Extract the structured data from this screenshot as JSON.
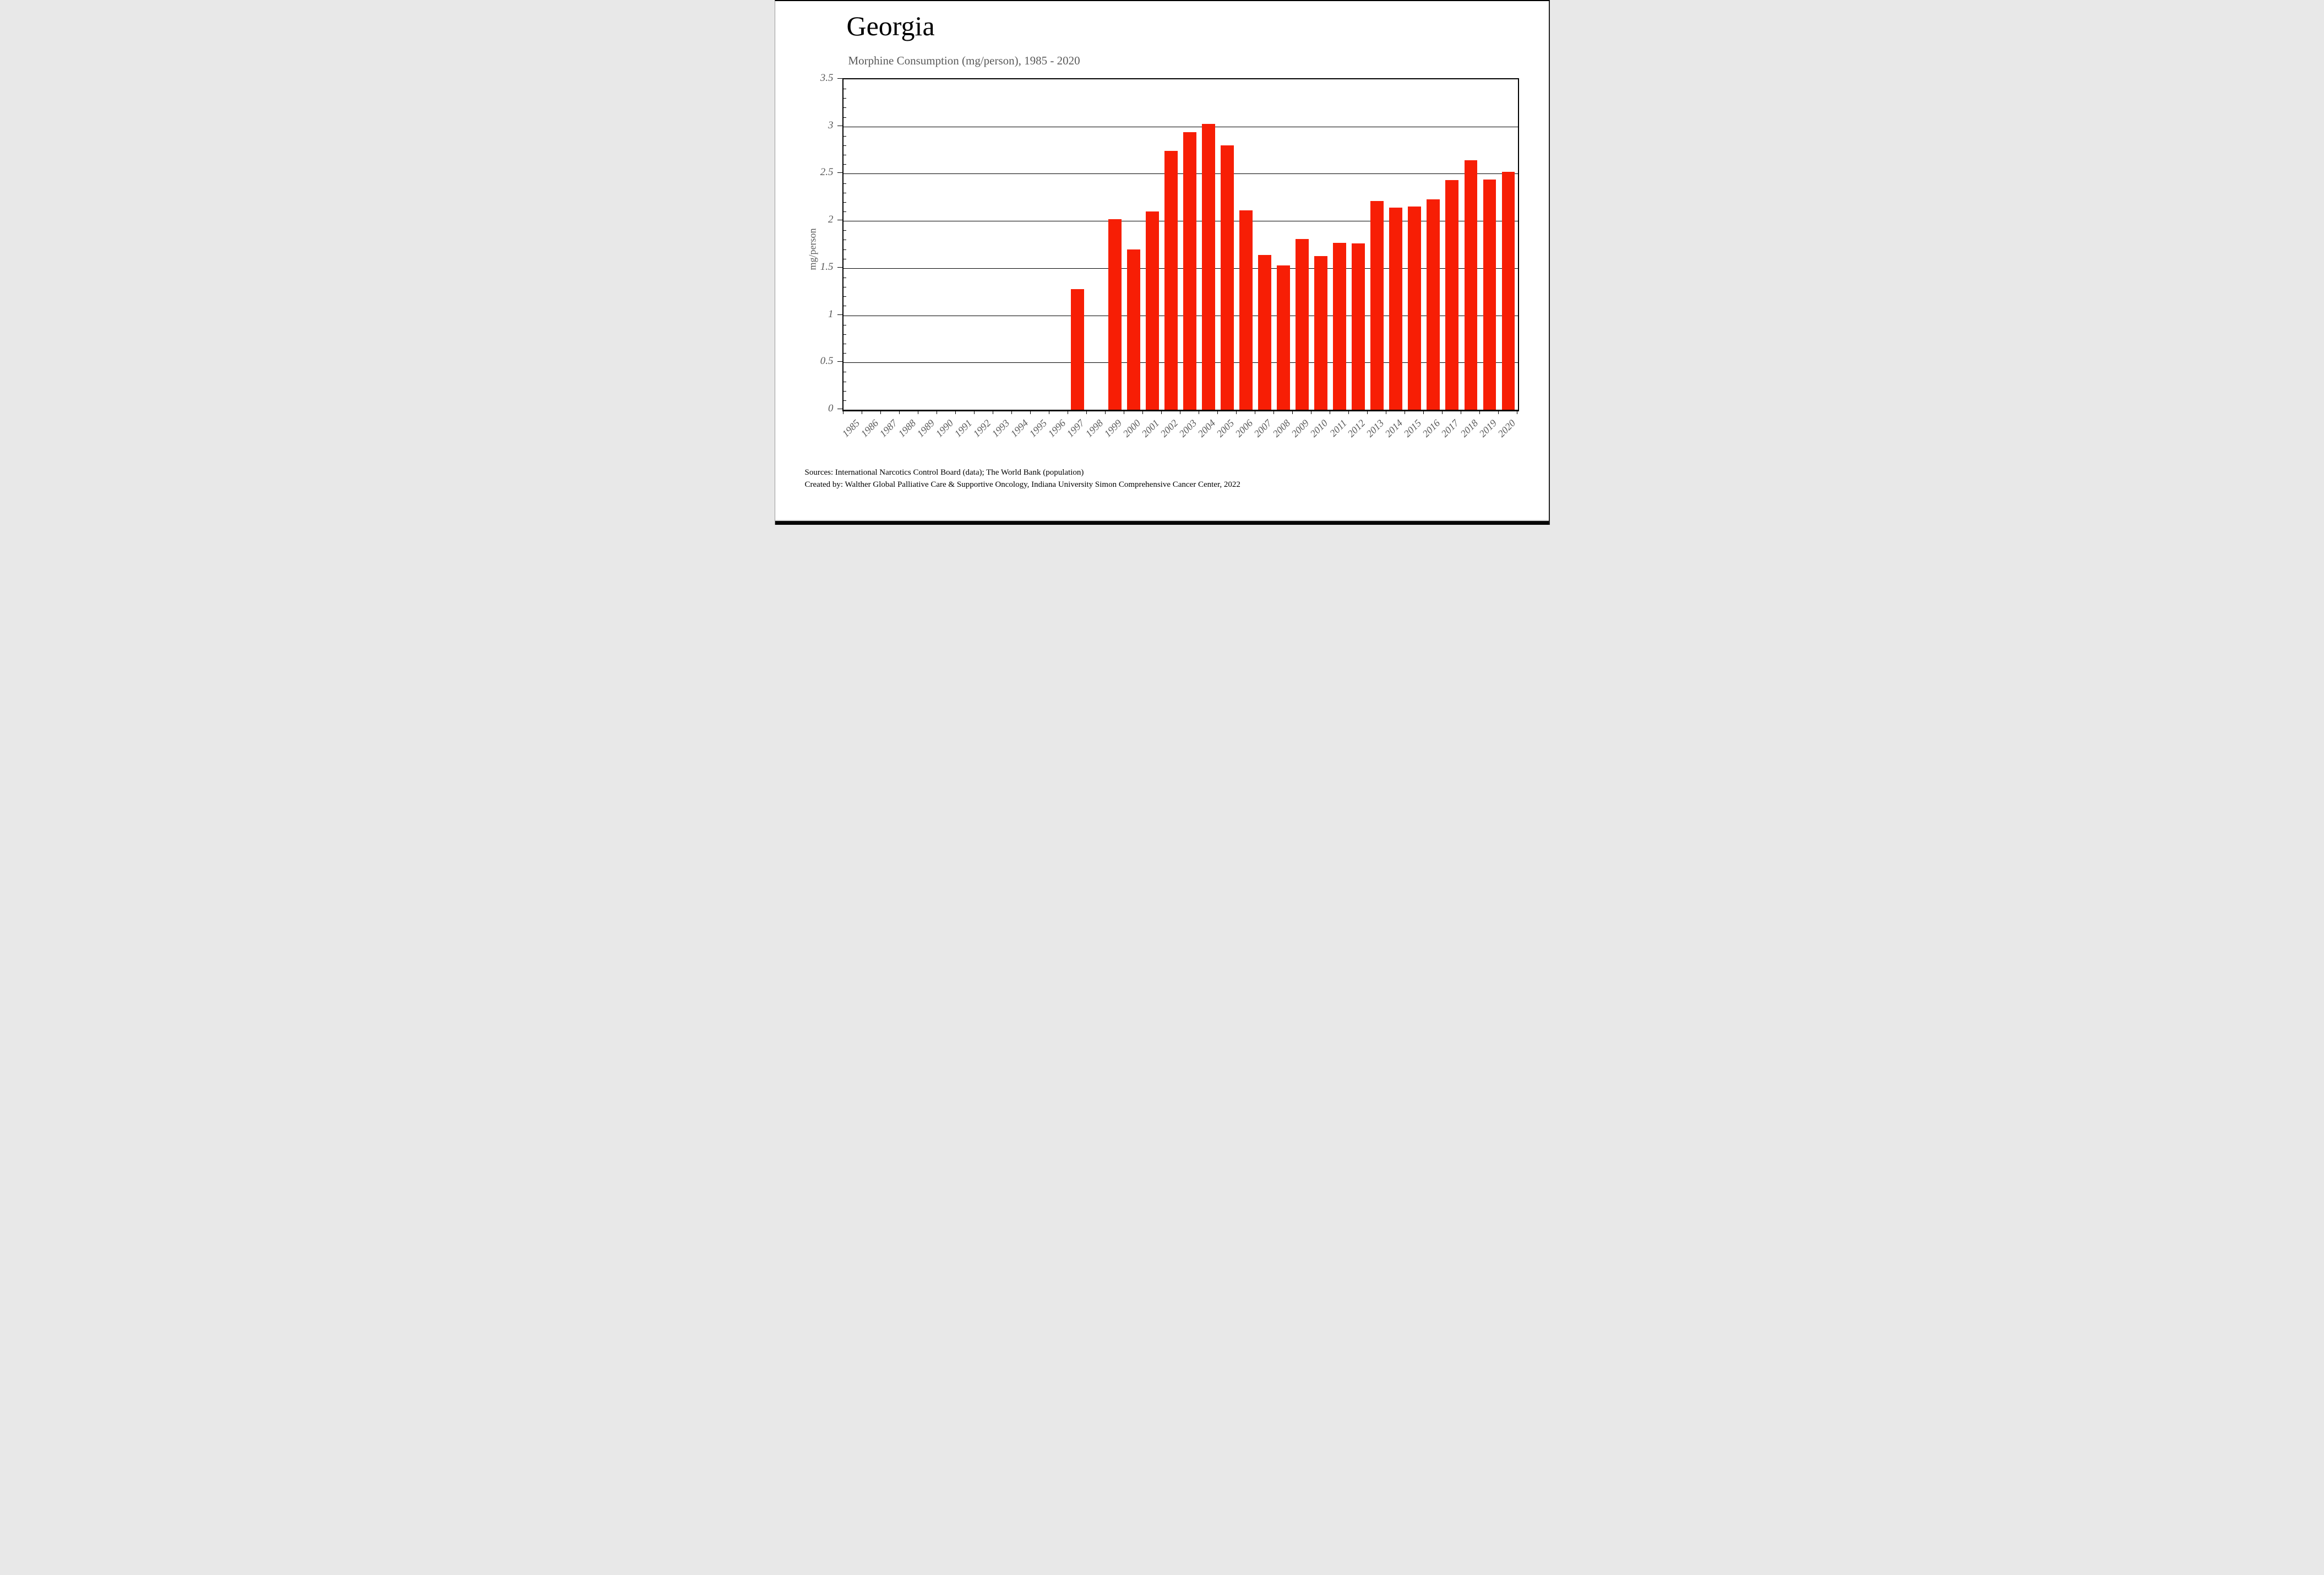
{
  "page": {
    "title": "Georgia",
    "subtitle": "Morphine Consumption (mg/person), 1985 - 2020",
    "source_line1": "Sources: International Narcotics Control Board (data); The World Bank (population)",
    "source_line2": "Created by: Walther  Global Palliative Care & Supportive Oncology, Indiana University Simon Comprehensive Cancer Center, 2022"
  },
  "chart_data": {
    "type": "bar",
    "title": "Georgia",
    "subtitle": "Morphine Consumption (mg/person), 1985 - 2020",
    "xlabel": "",
    "ylabel": "mg/person",
    "ylim": [
      0,
      3.5
    ],
    "ytick_step": 0.5,
    "ytick_labels": [
      "0",
      "0.5",
      "1",
      "1.5",
      "2",
      "2.5",
      "3",
      "3.5"
    ],
    "minor_tick_step": 0.1,
    "grid": true,
    "legend": false,
    "bar_color": "#f71e05",
    "axis_color": "#000000",
    "label_color": "#595959",
    "categories": [
      1985,
      1986,
      1987,
      1988,
      1989,
      1990,
      1991,
      1992,
      1993,
      1994,
      1995,
      1996,
      1997,
      1998,
      1999,
      2000,
      2001,
      2002,
      2003,
      2004,
      2005,
      2006,
      2007,
      2008,
      2009,
      2010,
      2011,
      2012,
      2013,
      2014,
      2015,
      2016,
      2017,
      2018,
      2019,
      2020
    ],
    "values": [
      null,
      null,
      null,
      null,
      null,
      null,
      null,
      null,
      null,
      null,
      null,
      null,
      1.28,
      null,
      2.02,
      1.7,
      2.1,
      2.74,
      2.94,
      3.03,
      2.8,
      2.11,
      1.64,
      1.53,
      1.81,
      1.63,
      1.77,
      1.76,
      2.21,
      2.14,
      2.15,
      2.23,
      2.43,
      2.64,
      2.44,
      2.52
    ]
  }
}
